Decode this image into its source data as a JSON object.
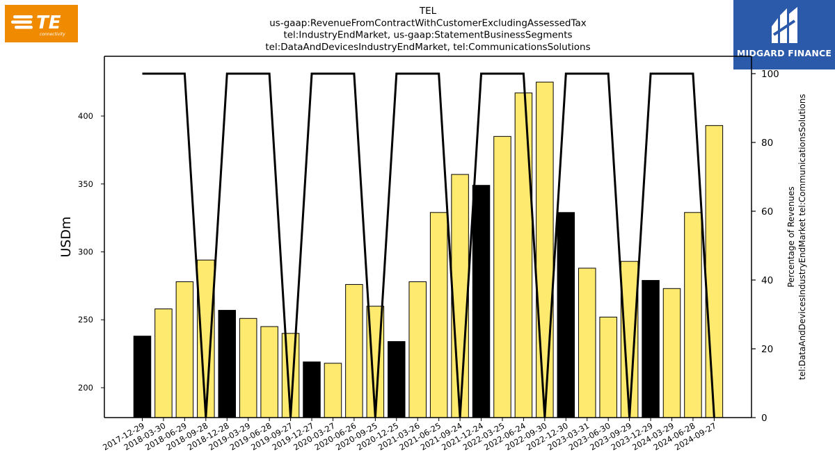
{
  "logos": {
    "left": {
      "name": "TE connectivity",
      "text": "TE",
      "subtext": "connectivity",
      "color": "#f08a00"
    },
    "right": {
      "name": "Midgard Finance",
      "text": "MIDGARD FINANCE",
      "color": "#2b5aaa"
    }
  },
  "chart_data": {
    "type": "bar",
    "title_lines": [
      "TEL",
      "us-gaap:RevenueFromContractWithCustomerExcludingAssessedTax",
      "tel:IndustryEndMarket, us-gaap:StatementBusinessSegments",
      "tel:DataAndDevicesIndustryEndMarket, tel:CommunicationsSolutions"
    ],
    "categories": [
      "2017-12-29",
      "2018-03-30",
      "2018-06-29",
      "2018-09-28",
      "2018-12-28",
      "2019-03-29",
      "2019-06-28",
      "2019-09-27",
      "2019-12-27",
      "2020-03-27",
      "2020-06-26",
      "2020-09-25",
      "2020-12-25",
      "2021-03-26",
      "2021-06-25",
      "2021-09-24",
      "2021-12-24",
      "2022-03-25",
      "2022-06-24",
      "2022-09-30",
      "2022-12-30",
      "2023-03-31",
      "2023-06-30",
      "2023-09-29",
      "2023-12-29",
      "2024-03-29",
      "2024-06-28",
      "2024-09-27"
    ],
    "series": [
      {
        "type": "bar",
        "axis": "left",
        "values": [
          238,
          258,
          278,
          294,
          257,
          251,
          245,
          240,
          219,
          218,
          276,
          260,
          234,
          278,
          329,
          357,
          349,
          385,
          417,
          425,
          329,
          288,
          252,
          293,
          279,
          273,
          329,
          393
        ],
        "colors": [
          "#000000",
          "#ffea70",
          "#ffea70",
          "#ffea70",
          "#000000",
          "#ffea70",
          "#ffea70",
          "#ffea70",
          "#000000",
          "#ffea70",
          "#ffea70",
          "#ffea70",
          "#000000",
          "#ffea70",
          "#ffea70",
          "#ffea70",
          "#000000",
          "#ffea70",
          "#ffea70",
          "#ffea70",
          "#000000",
          "#ffea70",
          "#ffea70",
          "#ffea70",
          "#000000",
          "#ffea70",
          "#ffea70",
          "#ffea70"
        ]
      },
      {
        "type": "line",
        "axis": "right",
        "color": "#000000",
        "values": [
          100,
          100,
          100,
          0,
          100,
          100,
          100,
          0,
          100,
          100,
          100,
          0,
          100,
          100,
          100,
          0,
          100,
          100,
          100,
          0,
          100,
          100,
          100,
          0,
          100,
          100,
          100,
          0
        ]
      }
    ],
    "ylabel": "USDm",
    "ylabel_right": "Percentage of Revenues\ntel:DataAndDevicesIndustryEndMarket tel:CommunicationsSolutions",
    "ylim": [
      178,
      444
    ],
    "yticks": [
      200,
      250,
      300,
      350,
      400
    ],
    "ylim_right": [
      0,
      100
    ],
    "yticks_right": [
      0,
      20,
      40,
      60,
      80,
      100
    ],
    "grid": false,
    "legend": "none"
  }
}
